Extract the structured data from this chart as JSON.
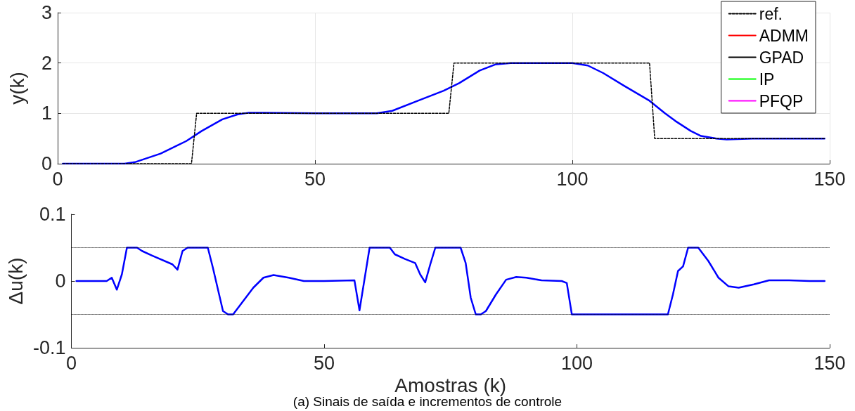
{
  "chart_data": [
    {
      "type": "line",
      "ylabel": "y(k)",
      "xlim": [
        0,
        150
      ],
      "xticks": [
        0,
        50,
        100,
        150
      ],
      "ylim": [
        0,
        3
      ],
      "yticks": [
        0,
        1,
        2,
        3
      ],
      "grid": true,
      "legend": "top right",
      "marker": "none",
      "series": [
        {
          "name": "ref.",
          "color": "#000000",
          "line_style": "dashed",
          "x": [
            1,
            26,
            27,
            76,
            77,
            115,
            116,
            149
          ],
          "values": [
            0,
            0,
            1,
            1,
            2,
            2,
            0.5,
            0.5
          ]
        },
        {
          "name": "ADMM",
          "color": "#ff0000"
        },
        {
          "name": "GPAD",
          "color": "#000000"
        },
        {
          "name": "IP",
          "color": "#00ff00"
        },
        {
          "name": "PFQP",
          "color": "#ff00ff"
        },
        {
          "color": "#0000ff",
          "x": [
            1,
            13,
            15,
            20,
            25,
            28,
            32,
            35,
            37,
            40,
            50,
            60,
            62,
            65,
            70,
            75,
            78,
            82,
            85,
            88,
            100,
            103,
            106,
            110,
            115,
            118,
            120,
            123,
            125,
            128,
            130,
            135,
            149
          ],
          "values": [
            0,
            0,
            0.03,
            0.2,
            0.45,
            0.65,
            0.88,
            0.98,
            1.01,
            1.01,
            1.0,
            1.0,
            1.0,
            1.05,
            1.25,
            1.45,
            1.6,
            1.85,
            1.97,
            2.0,
            2.0,
            1.95,
            1.8,
            1.55,
            1.25,
            1.0,
            0.85,
            0.65,
            0.55,
            0.5,
            0.48,
            0.5,
            0.5
          ]
        }
      ]
    },
    {
      "type": "line",
      "ylabel": "Δu(k)",
      "xlabel": "Amostras (k)",
      "xlim": [
        0,
        150
      ],
      "xticks": [
        0,
        50,
        100,
        150
      ],
      "ylim": [
        -0.1,
        0.1
      ],
      "yticks": [
        -0.1,
        0,
        0.1
      ],
      "grid": false,
      "marker": "none",
      "annotations": [
        "(a) Sinais de saída e incrementos de controle"
      ],
      "ref_lines": [
        {
          "axis": "y",
          "value": 0.05,
          "color": "#000000",
          "line_style": "dotted"
        },
        {
          "axis": "y",
          "value": -0.05,
          "color": "#000000",
          "line_style": "dotted"
        }
      ],
      "series": [
        {
          "color": "#0000ff",
          "x": [
            1,
            7,
            8,
            9,
            10,
            11,
            13,
            14,
            16,
            20,
            21,
            22,
            23,
            27,
            28,
            30,
            31,
            32,
            34,
            36,
            38,
            40,
            43,
            46,
            50,
            56,
            57,
            59,
            63,
            64,
            66,
            68,
            69,
            70,
            71,
            72,
            77,
            78,
            79,
            80,
            81,
            82,
            84,
            86,
            88,
            90,
            93,
            97,
            98,
            99,
            118,
            119,
            120,
            121,
            122,
            124,
            126,
            128,
            130,
            132,
            135,
            138,
            142,
            146,
            149
          ],
          "values": [
            0,
            0,
            0.005,
            -0.013,
            0.01,
            0.05,
            0.05,
            0.045,
            0.038,
            0.025,
            0.017,
            0.045,
            0.05,
            0.05,
            0.02,
            -0.045,
            -0.05,
            -0.05,
            -0.03,
            -0.01,
            0.005,
            0.009,
            0.005,
            0,
            0,
            0.001,
            -0.044,
            0.05,
            0.05,
            0.04,
            0.033,
            0.027,
            0.01,
            -0.002,
            0.025,
            0.05,
            0.05,
            0.027,
            -0.025,
            -0.05,
            -0.05,
            -0.045,
            -0.02,
            0.002,
            0.006,
            0.005,
            0.001,
            0,
            -0.003,
            -0.05,
            -0.05,
            -0.02,
            0.015,
            0.022,
            0.05,
            0.05,
            0.03,
            0.005,
            -0.008,
            -0.01,
            -0.005,
            0.001,
            0.001,
            0,
            0
          ]
        }
      ]
    }
  ]
}
